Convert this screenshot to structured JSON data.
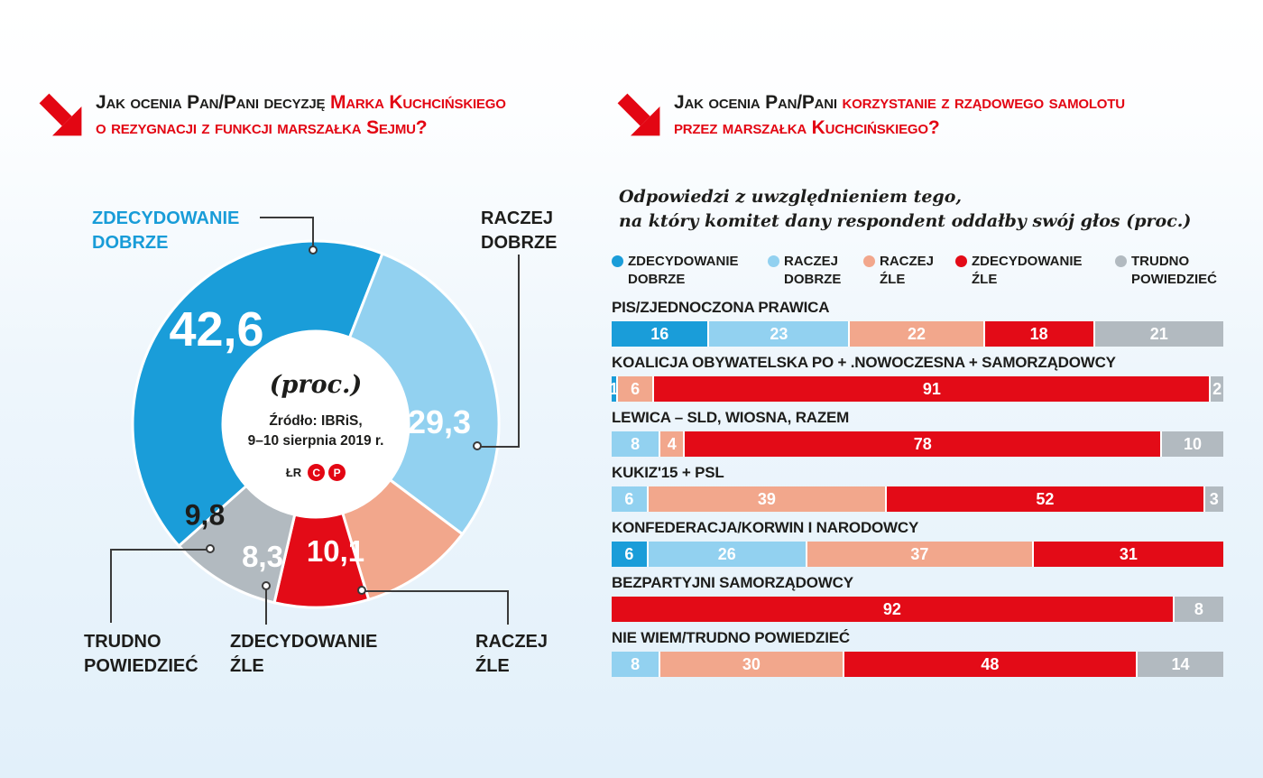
{
  "left": {
    "title_black": "Jak ocenia Pan/Pani decyzję",
    "title_red_line1": "Marka Kuchcińskiego",
    "title_red_line2": "o rezygnacji z funkcji marszałka Sejmu?",
    "donut_center": {
      "note": "(proc.)",
      "source_line1": "Źródło: IBRiS,",
      "source_line2": "9–10 sierpnia 2019 r.",
      "credit": "ŁR",
      "badge_c": "C",
      "badge_p": "P"
    }
  },
  "right": {
    "title_black": "Jak ocenia Pan/Pani",
    "title_red_line1": "korzystanie z rządowego samolotu",
    "title_red_line2": "przez marszałka Kuchcińskiego?",
    "subtitle_line1": "Odpowiedzi z uwzględnieniem tego,",
    "subtitle_line2": "na który komitet dany respondent oddałby swój głos (proc.)"
  },
  "colors": {
    "accent_red": "#e30613",
    "text_black": "#1d1d1b",
    "label_blue": "#189cd8"
  },
  "chart_data": [
    {
      "type": "pie",
      "donut": true,
      "title": "Jak ocenia Pan/Pani decyzję Marka Kuchcińskiego o rezygnacji z funkcji marszałka Sejmu? (proc.)",
      "labels": [
        "ZDECYDOWANIE DOBRZE",
        "RACZEJ DOBRZE",
        "RACZEJ ŹLE",
        "ZDECYDOWANIE ŹLE",
        "TRUDNO POWIEDZIEĆ"
      ],
      "callout_labels": [
        "ZDECYDOWANIE\nDOBRZE",
        "RACZEJ\nDOBRZE",
        "RACZEJ\nŹLE",
        "ZDECYDOWANIE\nŹLE",
        "TRUDNO\nPOWIEDZIEĆ"
      ],
      "values": [
        42.6,
        29.3,
        10.1,
        8.3,
        9.8
      ],
      "display_values": [
        "42,6",
        "29,3",
        "10,1",
        "8,3",
        "9,8"
      ],
      "colors": [
        "#1a9dd9",
        "#92d1f0",
        "#f2a78c",
        "#e30b17",
        "#b2bac0"
      ],
      "start_angle_deg": 228,
      "unit": "proc."
    },
    {
      "type": "bar",
      "stacked": true,
      "orientation": "horizontal",
      "title": "Jak ocenia Pan/Pani korzystanie z rządowego samolotu przez marszałka Kuchcińskiego? (proc.)",
      "series": [
        {
          "name": "ZDECYDOWANIE DOBRZE",
          "label_lines": "ZDECYDOWANIE\nDOBRZE",
          "color": "#1a9dd9"
        },
        {
          "name": "RACZEJ DOBRZE",
          "label_lines": "RACZEJ\nDOBRZE",
          "color": "#92d1f0"
        },
        {
          "name": "RACZEJ ŹLE",
          "label_lines": "RACZEJ\nŹLE",
          "color": "#f2a78c"
        },
        {
          "name": "ZDECYDOWANIE ŹLE",
          "label_lines": "ZDECYDOWANIE\nŹLE",
          "color": "#e30b17"
        },
        {
          "name": "TRUDNO POWIEDZIEĆ",
          "label_lines": "TRUDNO\nPOWIEDZIEĆ",
          "color": "#b2bac0"
        }
      ],
      "rows": [
        {
          "label": "PIS/ZJEDNOCZONA PRAWICA",
          "segments": [
            {
              "series": 0,
              "value": 16
            },
            {
              "series": 1,
              "value": 23
            },
            {
              "series": 2,
              "value": 22
            },
            {
              "series": 3,
              "value": 18
            },
            {
              "series": 4,
              "value": 21
            }
          ]
        },
        {
          "label": "KOALICJA OBYWATELSKA PO + .NOWOCZESNA + SAMORZĄDOWCY",
          "segments": [
            {
              "series": 0,
              "value": 1
            },
            {
              "series": 2,
              "value": 6
            },
            {
              "series": 3,
              "value": 91
            },
            {
              "series": 4,
              "value": 2
            }
          ]
        },
        {
          "label": "LEWICA – SLD, WIOSNA, RAZEM",
          "segments": [
            {
              "series": 1,
              "value": 8
            },
            {
              "series": 2,
              "value": 4
            },
            {
              "series": 3,
              "value": 78
            },
            {
              "series": 4,
              "value": 10
            }
          ]
        },
        {
          "label": "KUKIZ'15 + PSL",
          "segments": [
            {
              "series": 1,
              "value": 6
            },
            {
              "series": 2,
              "value": 39
            },
            {
              "series": 3,
              "value": 52
            },
            {
              "series": 4,
              "value": 3
            }
          ]
        },
        {
          "label": "KONFEDERACJA/KORWIN I NARODOWCY",
          "segments": [
            {
              "series": 0,
              "value": 6
            },
            {
              "series": 1,
              "value": 26
            },
            {
              "series": 2,
              "value": 37
            },
            {
              "series": 3,
              "value": 31
            }
          ]
        },
        {
          "label": "BEZPARTYJNI SAMORZĄDOWCY",
          "segments": [
            {
              "series": 3,
              "value": 92
            },
            {
              "series": 4,
              "value": 8
            }
          ]
        },
        {
          "label": "NIE WIEM/TRUDNO POWIEDZIEĆ",
          "segments": [
            {
              "series": 1,
              "value": 8
            },
            {
              "series": 2,
              "value": 30
            },
            {
              "series": 3,
              "value": 48
            },
            {
              "series": 4,
              "value": 14
            }
          ]
        }
      ]
    }
  ]
}
